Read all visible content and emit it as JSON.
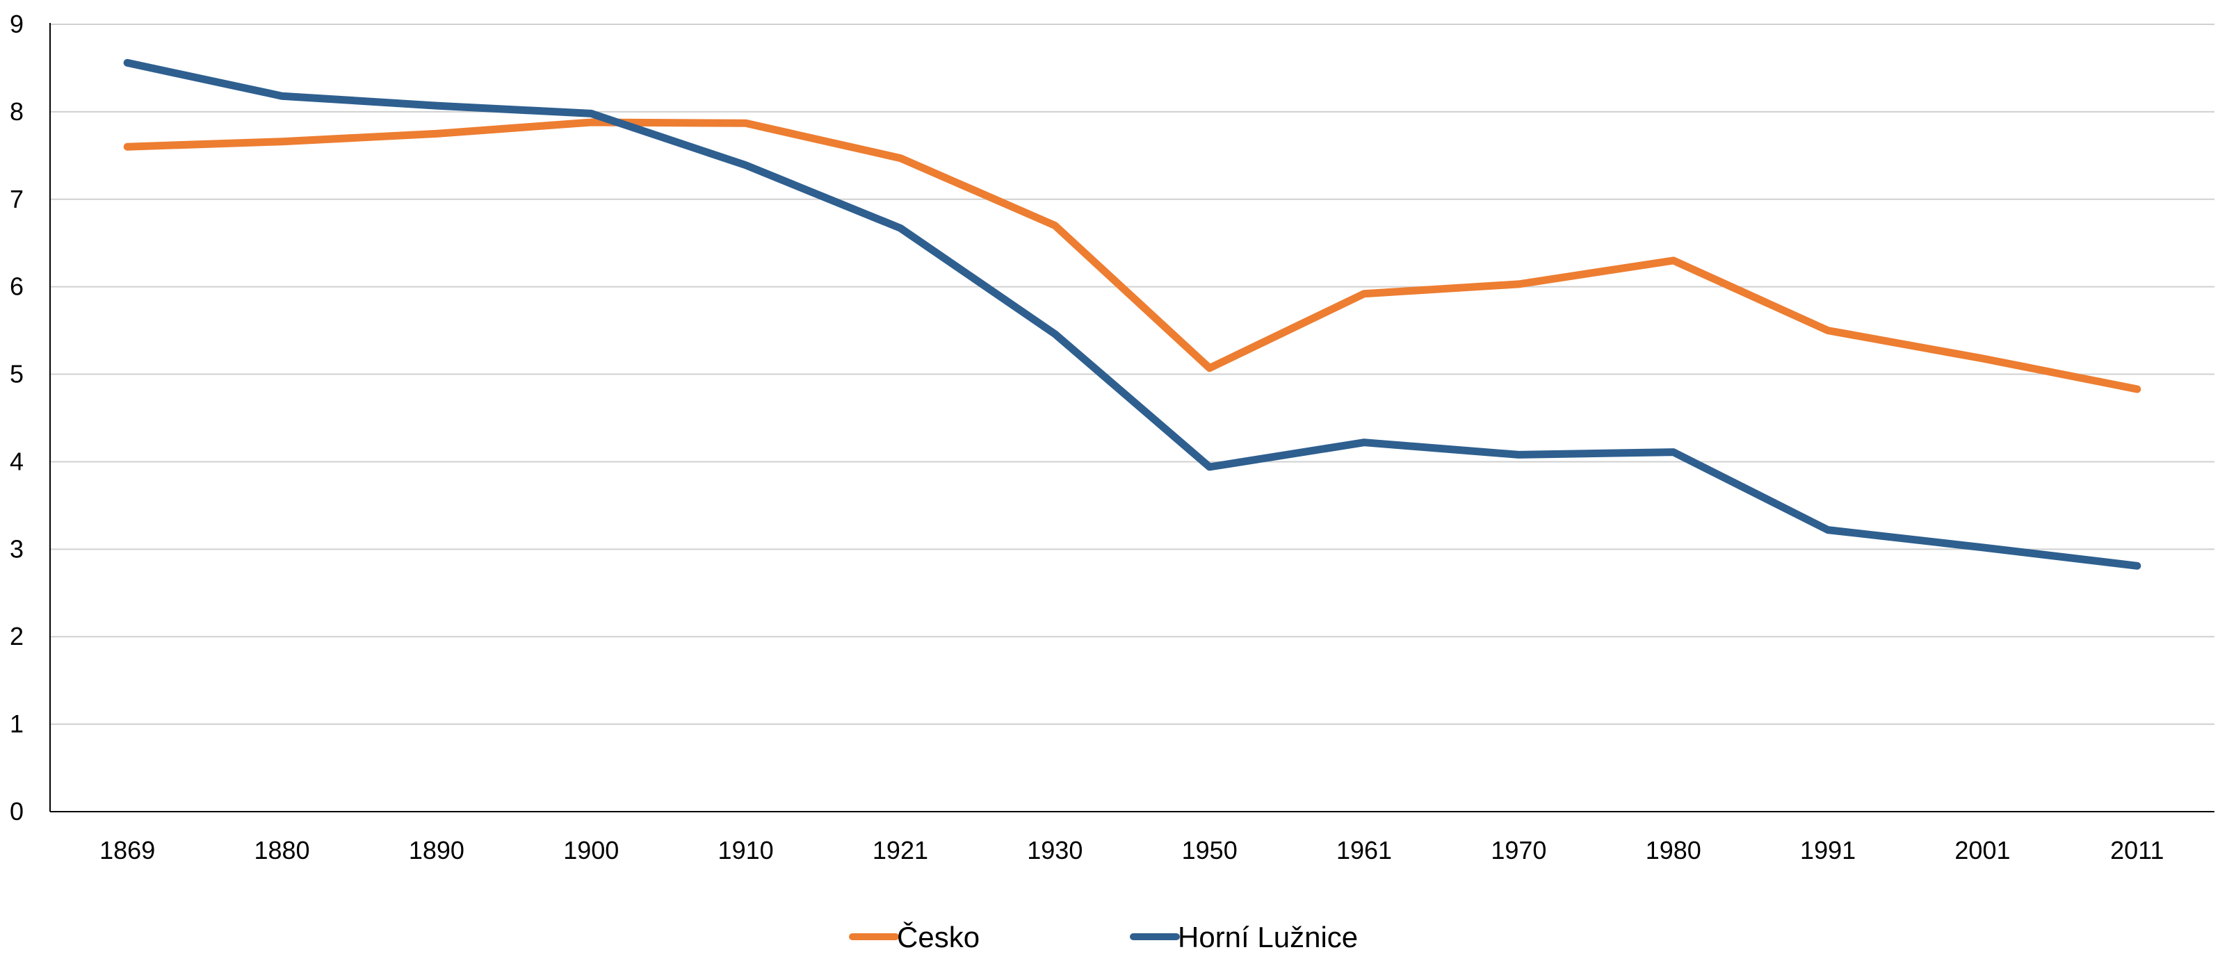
{
  "chart_data": {
    "type": "line",
    "title": "",
    "xlabel": "",
    "ylabel": "",
    "categories": [
      "1869",
      "1880",
      "1890",
      "1900",
      "1910",
      "1921",
      "1930",
      "1950",
      "1961",
      "1970",
      "1980",
      "1991",
      "2001",
      "2011"
    ],
    "ylim": [
      0,
      9
    ],
    "yticks": [
      "0",
      "1",
      "2",
      "3",
      "4",
      "5",
      "6",
      "7",
      "8",
      "9"
    ],
    "grid": true,
    "legend_position": "bottom",
    "series": [
      {
        "name": "Česko",
        "color": "#ED7D31",
        "values": [
          7.6,
          7.66,
          7.75,
          7.88,
          7.87,
          7.47,
          6.7,
          5.07,
          5.92,
          6.03,
          6.3,
          5.5,
          5.18,
          4.83
        ]
      },
      {
        "name": "Horní Lužnice",
        "color": "#2E5F8F",
        "values": [
          8.56,
          8.18,
          8.07,
          7.98,
          7.39,
          6.67,
          5.46,
          3.94,
          4.22,
          4.08,
          4.11,
          3.22,
          3.02,
          2.81
        ]
      }
    ]
  }
}
